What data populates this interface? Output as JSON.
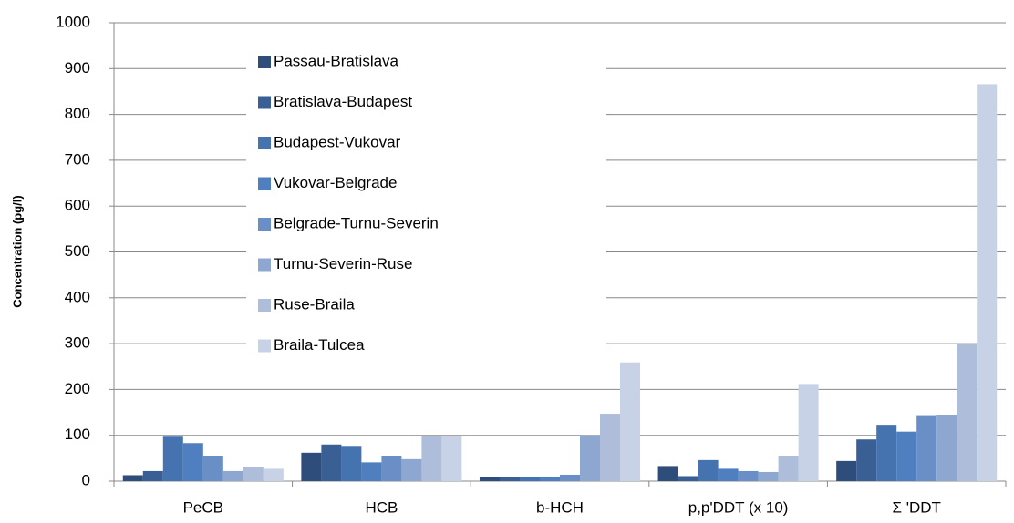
{
  "chart_data": {
    "type": "bar",
    "y_label": "Concentration (pg/l)",
    "categories": [
      "PeCB",
      "HCB",
      "b-HCH",
      "p,p'DDT (x 10)",
      "Σ 'DDT"
    ],
    "series": [
      {
        "name": "Passau-Bratislava",
        "color": "#2e4d7b",
        "values": [
          13,
          62,
          8,
          33,
          44
        ]
      },
      {
        "name": "Bratislava-Budapest",
        "color": "#3a5f95",
        "values": [
          22,
          80,
          8,
          11,
          91
        ]
      },
      {
        "name": "Budapest-Vukovar",
        "color": "#4573b0",
        "values": [
          97,
          75,
          8,
          46,
          123
        ]
      },
      {
        "name": "Vukovar-Belgrade",
        "color": "#4f7fbf",
        "values": [
          83,
          41,
          10,
          27,
          108
        ]
      },
      {
        "name": "Belgrade-Turnu-Severin",
        "color": "#6a8fc6",
        "values": [
          54,
          54,
          14,
          22,
          142
        ]
      },
      {
        "name": "Turnu-Severin-Ruse",
        "color": "#8ea7d0",
        "values": [
          22,
          48,
          100,
          20,
          144
        ]
      },
      {
        "name": "Ruse-Braila",
        "color": "#aebdd9",
        "values": [
          30,
          98,
          147,
          54,
          300
        ]
      },
      {
        "name": "Braila-Tulcea",
        "color": "#c8d2e6",
        "values": [
          27,
          98,
          259,
          212,
          866
        ]
      }
    ],
    "ylim": [
      0,
      1000
    ],
    "yticks": [
      0,
      100,
      200,
      300,
      400,
      500,
      600,
      700,
      800,
      900,
      1000
    ],
    "grid": true
  }
}
